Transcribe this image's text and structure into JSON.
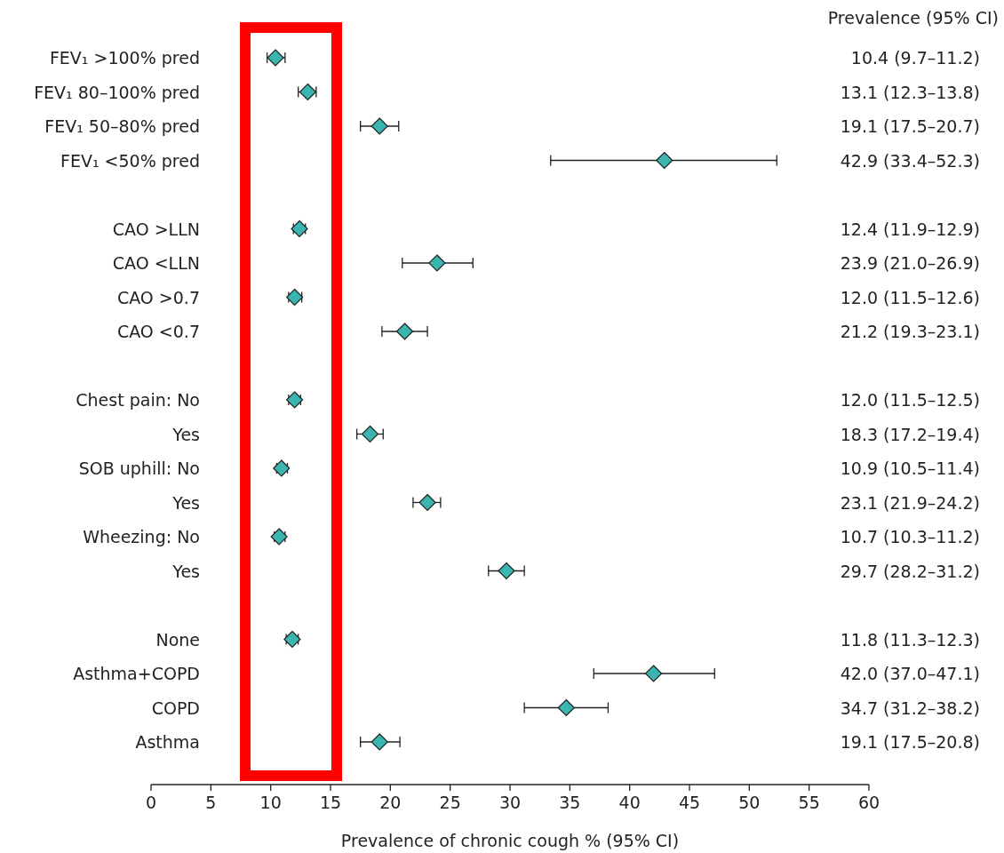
{
  "chart_data": {
    "type": "scatter",
    "orientation": "horizontal",
    "categories": [
      "FEV₁ >100% pred",
      "FEV₁ 80–100% pred",
      "FEV₁ 50–80% pred",
      "FEV₁ <50% pred",
      null,
      "CAO >LLN",
      "CAO <LLN",
      "CAO >0.7",
      "CAO <0.7",
      null,
      "Chest pain: No",
      "Yes",
      "SOB uphill: No",
      "Yes",
      "Wheezing: No",
      "Yes",
      null,
      "None",
      "Asthma+COPD",
      "COPD",
      "Asthma"
    ],
    "values": [
      10.4,
      13.1,
      19.1,
      42.9,
      null,
      12.4,
      23.9,
      12.0,
      21.2,
      null,
      12.0,
      18.3,
      10.9,
      23.1,
      10.7,
      29.7,
      null,
      11.8,
      42.0,
      34.7,
      19.1
    ],
    "errors": [
      [
        9.7,
        11.2
      ],
      [
        12.3,
        13.8
      ],
      [
        17.5,
        20.7
      ],
      [
        33.4,
        52.3
      ],
      null,
      [
        11.9,
        12.9
      ],
      [
        21.0,
        26.9
      ],
      [
        11.5,
        12.6
      ],
      [
        19.3,
        23.1
      ],
      null,
      [
        11.5,
        12.5
      ],
      [
        17.2,
        19.4
      ],
      [
        10.5,
        11.4
      ],
      [
        21.9,
        24.2
      ],
      [
        10.3,
        11.2
      ],
      [
        28.2,
        31.2
      ],
      null,
      [
        11.3,
        12.3
      ],
      [
        37.0,
        47.1
      ],
      [
        31.2,
        38.2
      ],
      [
        17.5,
        20.8
      ]
    ],
    "value_labels": [
      "10.4 (9.7–11.2)",
      "13.1 (12.3–13.8)",
      "19.1 (17.5–20.7)",
      "42.9 (33.4–52.3)",
      null,
      "12.4 (11.9–12.9)",
      "23.9 (21.0–26.9)",
      "12.0 (11.5–12.6)",
      "21.2 (19.3–23.1)",
      null,
      "12.0 (11.5–12.5)",
      "18.3 (17.2–19.4)",
      "10.9 (10.5–11.4)",
      "23.1 (21.9–24.2)",
      "10.7 (10.3–11.2)",
      "29.7 (28.2–31.2)",
      null,
      "11.8 (11.3–12.3)",
      "42.0 (37.0–47.1)",
      "34.7 (31.2–38.2)",
      "19.1 (17.5–20.8)"
    ],
    "color": "#3ab5b0",
    "marker": "diamond",
    "xlim": [
      0,
      60
    ],
    "xticks": [
      0,
      5,
      10,
      15,
      20,
      25,
      30,
      35,
      40,
      45,
      50,
      55,
      60
    ],
    "xlabel": "Prevalence of chronic cough % (95% CI)",
    "annotations": [
      "Prevalence (95% CI)"
    ]
  }
}
